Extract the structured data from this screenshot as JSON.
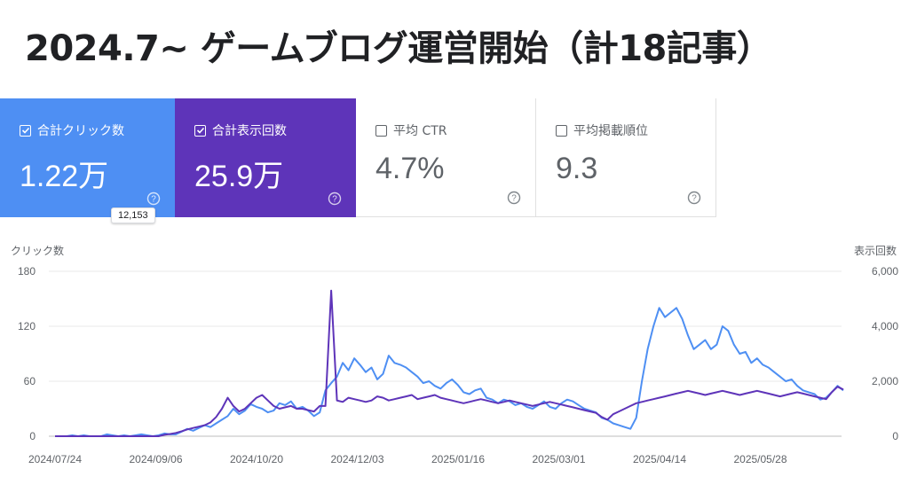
{
  "title": "2024.7~ ゲームブログ運営開始（計18記事）",
  "cards": {
    "clicks": {
      "label": "合計クリック数",
      "value": "1.22万",
      "checked": true
    },
    "impressions": {
      "label": "合計表示回数",
      "value": "25.9万",
      "checked": true
    },
    "ctr": {
      "label": "平均 CTR",
      "value": "4.7%",
      "checked": false
    },
    "position": {
      "label": "平均掲載順位",
      "value": "9.3",
      "checked": false
    }
  },
  "tooltip": "12,153",
  "colors": {
    "clicks": "#4e8ff3",
    "impressions": "#5e34b9"
  },
  "chart_data": {
    "type": "line",
    "ylabel_left": "クリック数",
    "ylabel_right": "表示回数",
    "y_left_ticks": [
      "180",
      "120",
      "60",
      "0"
    ],
    "y_right_ticks": [
      "6,000",
      "4,000",
      "2,000",
      "0"
    ],
    "y_left_range": [
      0,
      180
    ],
    "y_right_range": [
      0,
      6000
    ],
    "x_ticks": [
      "2024/07/24",
      "2024/09/06",
      "2024/10/20",
      "2024/12/03",
      "2025/01/16",
      "2025/03/01",
      "2025/04/14",
      "2025/05/28"
    ],
    "grid": true,
    "series": [
      {
        "name": "クリック数",
        "axis": "left",
        "color": "#4e8ff3",
        "values": [
          0,
          0,
          0,
          1,
          0,
          1,
          0,
          0,
          0,
          2,
          1,
          0,
          1,
          0,
          1,
          2,
          1,
          0,
          1,
          3,
          2,
          2,
          5,
          8,
          6,
          9,
          12,
          10,
          14,
          18,
          22,
          30,
          24,
          28,
          35,
          32,
          30,
          26,
          28,
          36,
          34,
          38,
          30,
          32,
          28,
          22,
          26,
          50,
          58,
          65,
          80,
          72,
          85,
          78,
          70,
          75,
          62,
          68,
          88,
          80,
          78,
          75,
          70,
          65,
          58,
          60,
          55,
          52,
          58,
          62,
          56,
          48,
          46,
          50,
          52,
          42,
          40,
          36,
          40,
          38,
          34,
          36,
          32,
          30,
          34,
          38,
          32,
          30,
          36,
          40,
          38,
          34,
          30,
          28,
          26,
          20,
          18,
          14,
          12,
          10,
          8,
          20,
          60,
          95,
          120,
          140,
          130,
          135,
          140,
          128,
          110,
          95,
          100,
          105,
          95,
          100,
          120,
          115,
          100,
          90,
          92,
          80,
          85,
          78,
          75,
          70,
          65,
          60,
          62,
          55,
          50,
          48,
          46,
          40,
          42,
          48,
          55,
          50
        ]
      },
      {
        "name": "表示回数",
        "axis": "right",
        "color": "#5e34b9",
        "values": [
          0,
          0,
          0,
          0,
          0,
          0,
          0,
          0,
          0,
          0,
          0,
          0,
          0,
          0,
          0,
          0,
          0,
          0,
          0,
          50,
          80,
          120,
          180,
          250,
          300,
          350,
          400,
          500,
          700,
          1000,
          1400,
          1100,
          900,
          1000,
          1200,
          1400,
          1500,
          1300,
          1100,
          1000,
          1050,
          1100,
          1000,
          1000,
          950,
          900,
          1100,
          1100,
          5300,
          1300,
          1250,
          1400,
          1350,
          1300,
          1250,
          1300,
          1450,
          1400,
          1300,
          1350,
          1400,
          1450,
          1500,
          1350,
          1400,
          1450,
          1500,
          1400,
          1350,
          1300,
          1250,
          1200,
          1250,
          1300,
          1350,
          1300,
          1250,
          1200,
          1250,
          1300,
          1250,
          1200,
          1150,
          1100,
          1150,
          1200,
          1250,
          1200,
          1150,
          1100,
          1050,
          1000,
          950,
          900,
          850,
          700,
          600,
          800,
          900,
          1000,
          1100,
          1200,
          1250,
          1300,
          1350,
          1400,
          1450,
          1500,
          1550,
          1600,
          1650,
          1600,
          1550,
          1500,
          1550,
          1600,
          1650,
          1600,
          1550,
          1500,
          1550,
          1600,
          1650,
          1600,
          1550,
          1500,
          1450,
          1500,
          1550,
          1600,
          1550,
          1500,
          1450,
          1400,
          1350,
          1600,
          1800,
          1700
        ]
      }
    ]
  }
}
